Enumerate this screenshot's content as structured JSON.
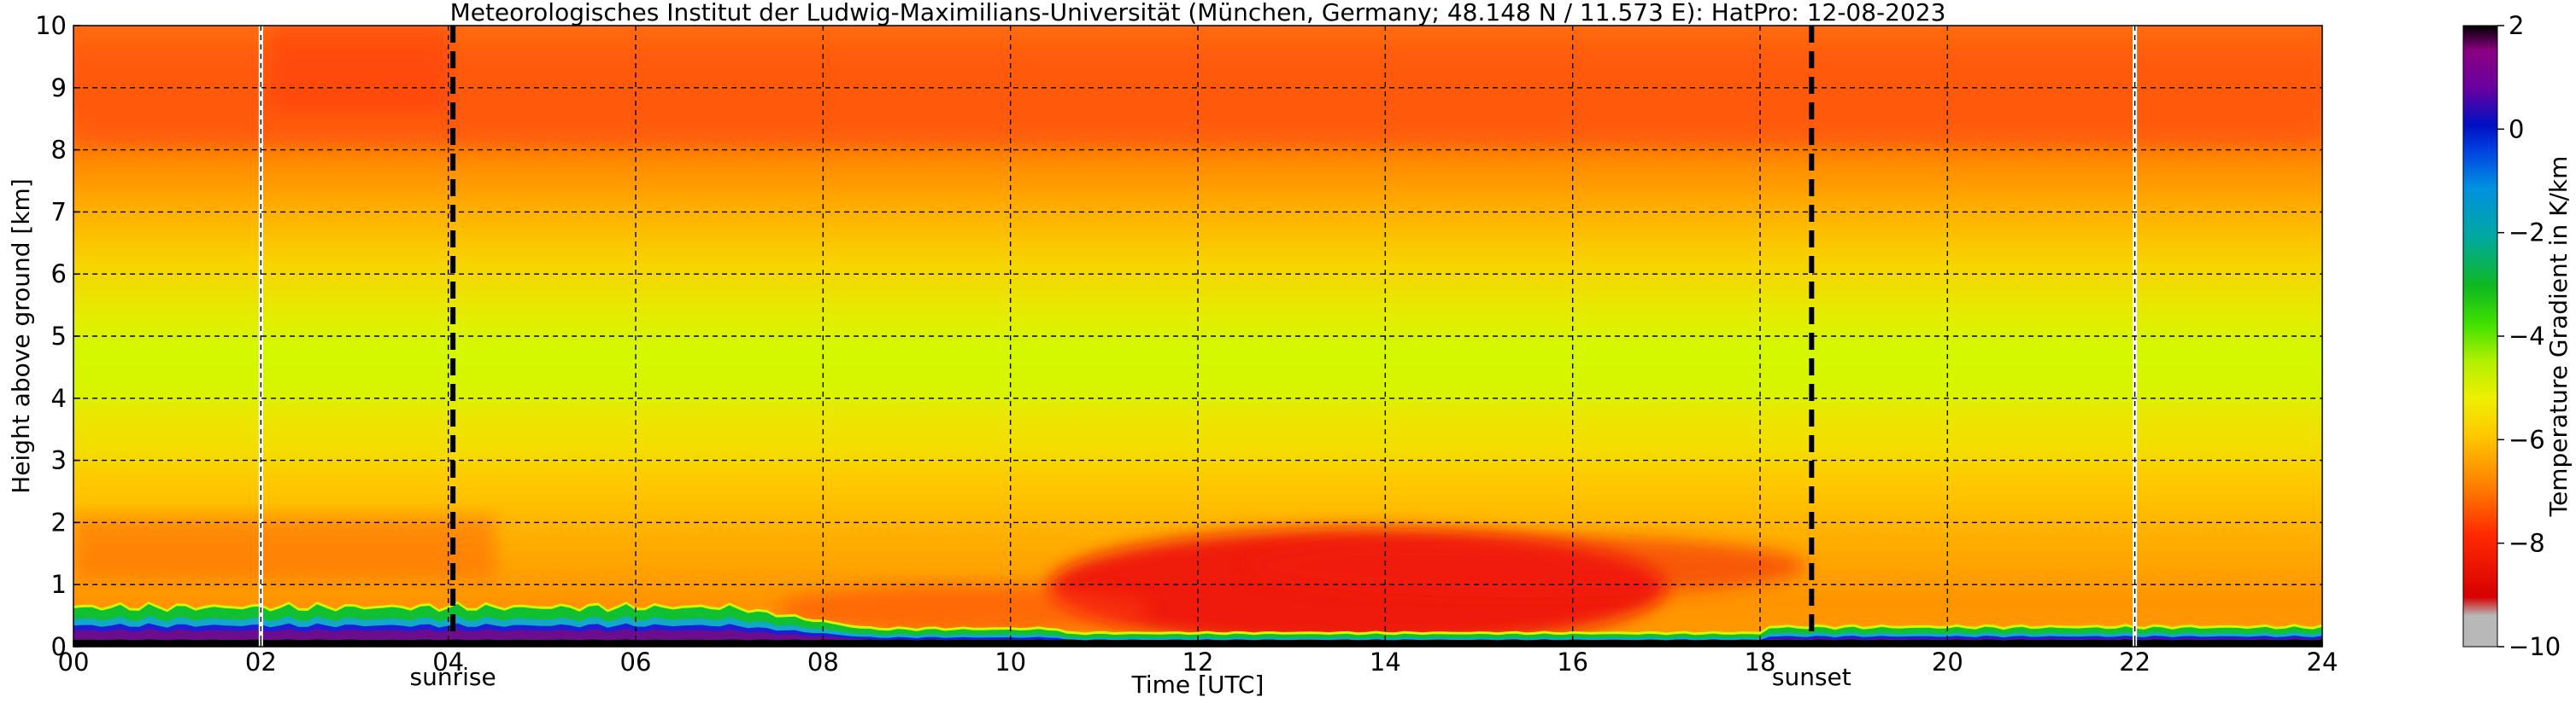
{
  "figure": {
    "title": "Meteorologisches Institut der Ludwig-Maximilians-Universität (München, Germany; 48.148 N / 11.573 E):    HatPro: 12-08-2023"
  },
  "chart_data": {
    "type": "heatmap",
    "title": "Meteorologisches Institut der Ludwig-Maximilians-Universität (München, Germany; 48.148 N / 11.573 E):    HatPro: 12-08-2023",
    "xlabel": "Time [UTC]",
    "ylabel": "Height above ground [km]",
    "xlim": [
      0,
      24
    ],
    "ylim": [
      0,
      10
    ],
    "x_ticks": [
      "00",
      "02",
      "04",
      "06",
      "08",
      "10",
      "12",
      "14",
      "16",
      "18",
      "20",
      "22",
      "24"
    ],
    "y_ticks": [
      "0",
      "1",
      "2",
      "3",
      "4",
      "5",
      "6",
      "7",
      "8",
      "9",
      "10"
    ],
    "grid": true,
    "colorbar": {
      "label": "Temperature Gradient in K/km",
      "range": [
        -10,
        2
      ],
      "ticks": [
        "2",
        "0",
        "−2",
        "−4",
        "−6",
        "−8",
        "−10"
      ]
    },
    "events": [
      {
        "label": "sunrise",
        "time_utc": 4.05
      },
      {
        "label": "sunset",
        "time_utc": 18.55
      }
    ],
    "data_gaps_utc": [
      2.0,
      22.0
    ],
    "colors": {
      "black": "#000000",
      "purple": "#6b0d8c",
      "blue": "#1d1fd6",
      "cyan": "#14a8c8",
      "green": "#10c030",
      "yellow_green": "#d4f800",
      "yellow": "#f8dc00",
      "orange": "#ff9a00",
      "orange_red": "#ff5a08",
      "red": "#ee1010",
      "gray": "#b8b8b8"
    },
    "profile_description": "Gradient (K/km) vs height: near-surface inversion (~+2) below 0.2 km, stable layer to ~0.6 km early morning, about -8 near 1-2 km midday, about -6 near 4-5 km, about -7.5 near 8-9 km"
  }
}
